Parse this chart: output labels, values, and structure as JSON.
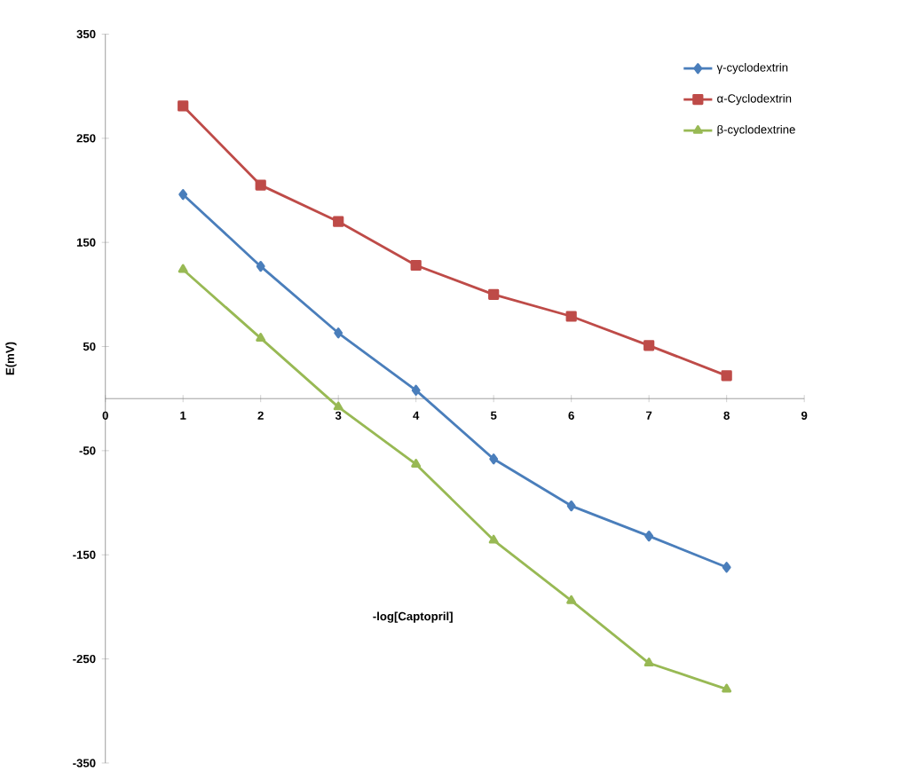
{
  "chart_data": {
    "type": "line",
    "xlabel": "-log[Captopril]",
    "ylabel": "E(mV)",
    "x": [
      1,
      2,
      3,
      4,
      5,
      6,
      7,
      8
    ],
    "series": [
      {
        "name": "γ-cyclodextrin",
        "color": "#4a7ebb",
        "marker": "diamond",
        "values": [
          196,
          127,
          63,
          8,
          -58,
          -103,
          -132,
          -162
        ]
      },
      {
        "name": "α-Cyclodextrin",
        "color": "#be4b48",
        "marker": "square",
        "values": [
          281,
          205,
          170,
          128,
          100,
          79,
          51,
          22
        ]
      },
      {
        "name": "β-cyclodextrine",
        "color": "#98b954",
        "marker": "triangle",
        "values": [
          124,
          58,
          -8,
          -63,
          -136,
          -194,
          -254,
          -279
        ]
      }
    ],
    "xlim": [
      0,
      9
    ],
    "xticks": [
      0,
      1,
      2,
      3,
      4,
      5,
      6,
      7,
      8,
      9
    ],
    "ylim": [
      -350,
      350
    ],
    "yticks": [
      -350,
      -250,
      -150,
      -50,
      50,
      150,
      250,
      350
    ],
    "legend": "top right",
    "grid": false,
    "line_style": "solid"
  }
}
